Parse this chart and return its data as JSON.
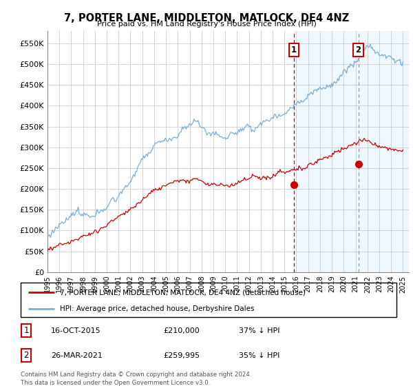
{
  "title": "7, PORTER LANE, MIDDLETON, MATLOCK, DE4 4NZ",
  "subtitle": "Price paid vs. HM Land Registry's House Price Index (HPI)",
  "ylabel_ticks": [
    "£0",
    "£50K",
    "£100K",
    "£150K",
    "£200K",
    "£250K",
    "£300K",
    "£350K",
    "£400K",
    "£450K",
    "£500K",
    "£550K"
  ],
  "ytick_values": [
    0,
    50000,
    100000,
    150000,
    200000,
    250000,
    300000,
    350000,
    400000,
    450000,
    500000,
    550000
  ],
  "ylim": [
    0,
    580000
  ],
  "xlim_start": 1995.0,
  "xlim_end": 2025.5,
  "marker1_x": 2015.79,
  "marker1_y": 210000,
  "marker2_x": 2021.23,
  "marker2_y": 259995,
  "vline1_x": 2015.79,
  "vline2_x": 2021.23,
  "annotation1_label": "1",
  "annotation2_label": "2",
  "legend_line1": "7, PORTER LANE, MIDDLETON, MATLOCK, DE4 4NZ (detached house)",
  "legend_line2": "HPI: Average price, detached house, Derbyshire Dales",
  "table_row1": [
    "1",
    "16-OCT-2015",
    "£210,000",
    "37% ↓ HPI"
  ],
  "table_row2": [
    "2",
    "26-MAR-2021",
    "£259,995",
    "35% ↓ HPI"
  ],
  "footer": "Contains HM Land Registry data © Crown copyright and database right 2024.\nThis data is licensed under the Open Government Licence v3.0.",
  "price_color": "#cc0000",
  "hpi_color": "#7bafd4",
  "background_color": "#ffffff",
  "grid_color": "#cccccc",
  "vline1_color": "#cc0000",
  "vline2_color": "#999999",
  "shade_color": "#ddeeff"
}
